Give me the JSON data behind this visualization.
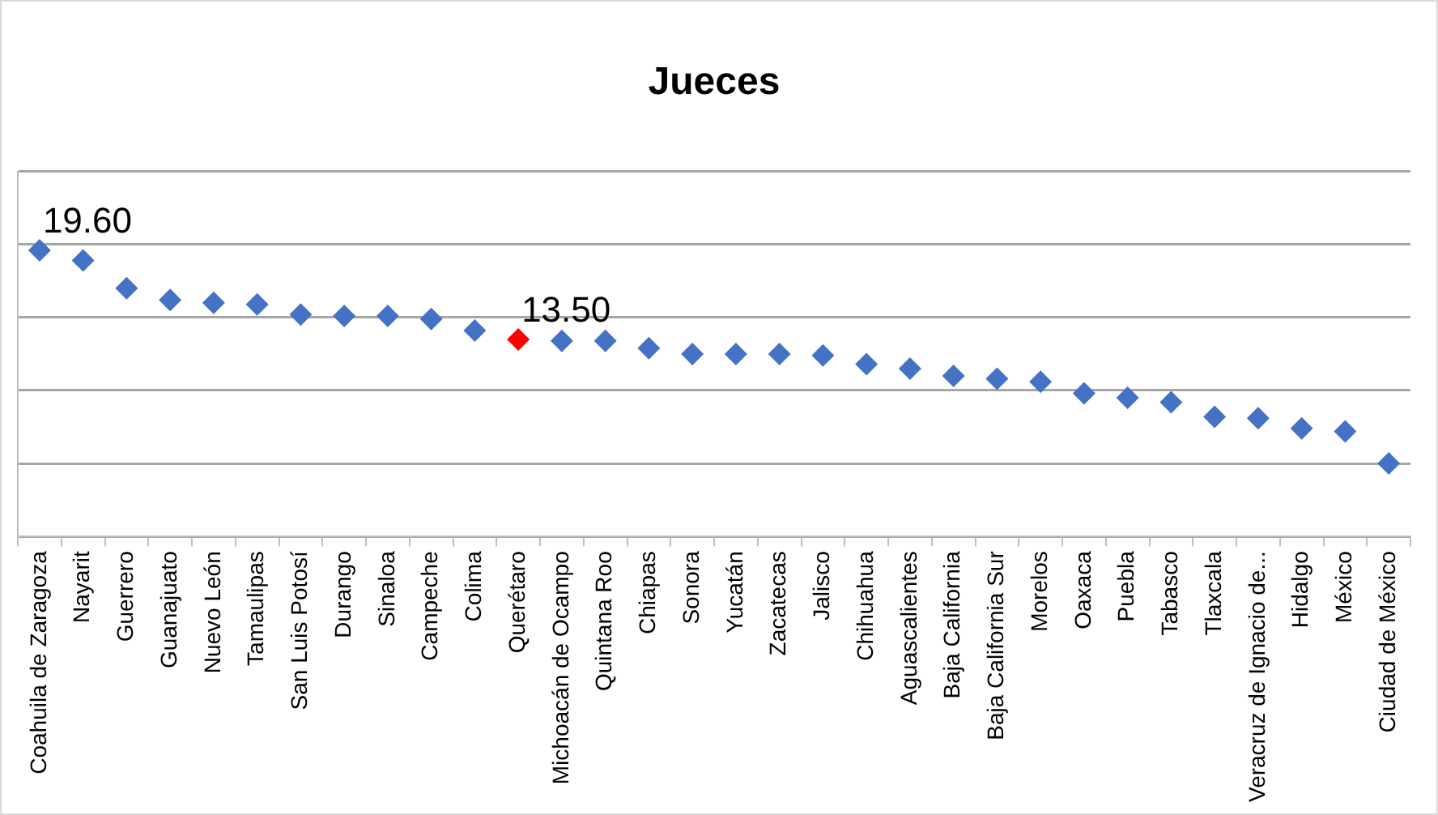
{
  "chart_data": {
    "type": "scatter",
    "title": "Jueces",
    "categories": [
      "Coahuila de Zaragoza",
      "Nayarit",
      "Guerrero",
      "Guanajuato",
      "Nuevo León",
      "Tamaulipas",
      "San Luis Potosí",
      "Durango",
      "Sinaloa",
      "Campeche",
      "Colima",
      "Querétaro",
      "Michoacán de Ocampo",
      "Quintana Roo",
      "Chiapas",
      "Sonora",
      "Yucatán",
      "Zacatecas",
      "Jalisco",
      "Chihuahua",
      "Aguascalientes",
      "Baja California",
      "Baja California Sur",
      "Morelos",
      "Oaxaca",
      "Puebla",
      "Tabasco",
      "Tlaxcala",
      "Veracruz de Ignacio de...",
      "Hidalgo",
      "México",
      "Ciudad de México"
    ],
    "values": [
      19.6,
      18.9,
      17.0,
      16.2,
      16.0,
      15.9,
      15.2,
      15.1,
      15.1,
      14.9,
      14.1,
      13.5,
      13.4,
      13.4,
      12.9,
      12.5,
      12.5,
      12.5,
      12.4,
      11.8,
      11.5,
      11.0,
      10.8,
      10.6,
      9.8,
      9.5,
      9.2,
      8.2,
      8.1,
      7.4,
      7.2,
      5.0
    ],
    "colors": [
      "#4472c4",
      "#4472c4",
      "#4472c4",
      "#4472c4",
      "#4472c4",
      "#4472c4",
      "#4472c4",
      "#4472c4",
      "#4472c4",
      "#4472c4",
      "#4472c4",
      "#ff0000",
      "#4472c4",
      "#4472c4",
      "#4472c4",
      "#4472c4",
      "#4472c4",
      "#4472c4",
      "#4472c4",
      "#4472c4",
      "#4472c4",
      "#4472c4",
      "#4472c4",
      "#4472c4",
      "#4472c4",
      "#4472c4",
      "#4472c4",
      "#4472c4",
      "#4472c4",
      "#4472c4",
      "#4472c4",
      "#4472c4"
    ],
    "value_labels": [
      "19.60",
      null,
      null,
      null,
      null,
      null,
      null,
      null,
      null,
      null,
      null,
      "13.50",
      null,
      null,
      null,
      null,
      null,
      null,
      null,
      null,
      null,
      null,
      null,
      null,
      null,
      null,
      null,
      null,
      null,
      null,
      null,
      null
    ],
    "ylim": [
      0,
      25
    ],
    "yticks": [
      {
        "value": 0,
        "label": null
      },
      {
        "value": 5,
        "label": null
      },
      {
        "value": 10,
        "label": null
      },
      {
        "value": 15,
        "label": null
      },
      {
        "value": 20,
        "label": null
      },
      {
        "value": 25,
        "label": null
      }
    ],
    "grid": "y",
    "legend": false,
    "marker": "diamond",
    "tick_labels": "x"
  }
}
